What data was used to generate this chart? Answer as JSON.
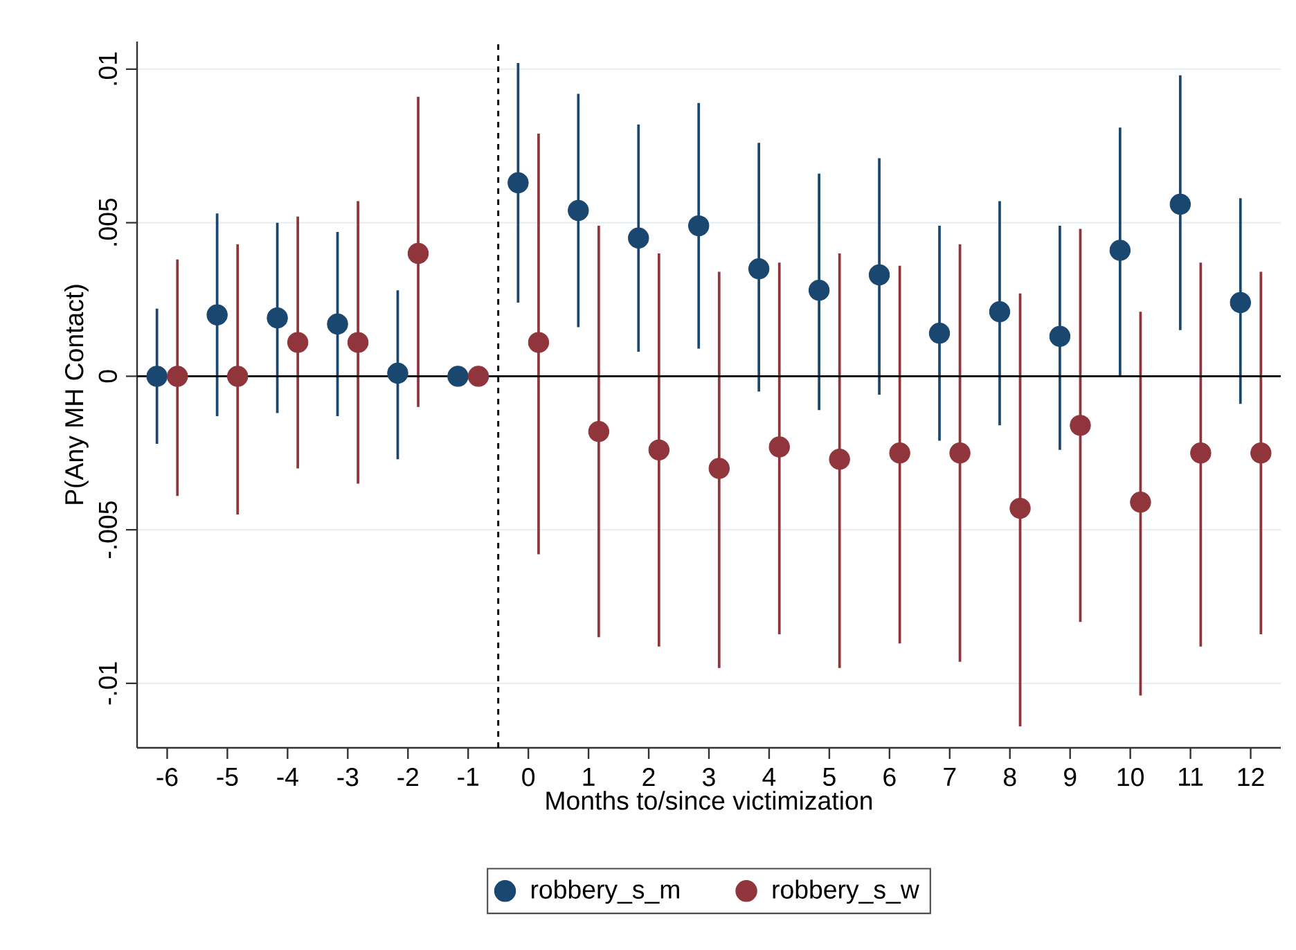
{
  "chart_data": {
    "type": "scatter",
    "xlabel": "Months to/since victimization",
    "ylabel": "P(Any MH Contact)",
    "xlim": [
      -6.5,
      12.5
    ],
    "ylim": [
      -0.0121,
      0.0109
    ],
    "xticks": [
      -6,
      -5,
      -4,
      -3,
      -2,
      -1,
      0,
      1,
      2,
      3,
      4,
      5,
      6,
      7,
      8,
      9,
      10,
      11,
      12
    ],
    "yticks": [
      {
        "value": -0.01,
        "label": "-.01"
      },
      {
        "value": -0.005,
        "label": "-.005"
      },
      0,
      {
        "value": 0.005,
        "label": ".005"
      },
      {
        "value": 0.01,
        "label": ".01"
      }
    ],
    "grid": "y",
    "legend": "bottom",
    "marker": "circle",
    "ref_lines": [
      {
        "axis": "y",
        "value": 0,
        "color": "#000000",
        "line_style": "solid"
      },
      {
        "axis": "x",
        "value": -0.5,
        "color": "#000000",
        "line_style": "dashed"
      }
    ],
    "series": [
      {
        "name": "robbery_s_m",
        "color": "#1a476f",
        "x": [
          -6.17,
          -5.17,
          -4.17,
          -3.17,
          -2.17,
          -1.17,
          -0.17,
          0.83,
          1.83,
          2.83,
          3.83,
          4.83,
          5.83,
          6.83,
          7.83,
          8.83,
          9.83,
          10.83,
          11.83
        ],
        "values": [
          0.0,
          0.002,
          0.0019,
          0.0017,
          0.0001,
          0.0,
          0.0063,
          0.0054,
          0.0045,
          0.0049,
          0.0035,
          0.0028,
          0.0033,
          0.0014,
          0.0021,
          0.0013,
          0.0041,
          0.0056,
          0.0024
        ],
        "errors": [
          [
            -0.0022,
            0.0022
          ],
          [
            -0.0013,
            0.0053
          ],
          [
            -0.0012,
            0.005
          ],
          [
            -0.0013,
            0.0047
          ],
          [
            -0.0027,
            0.0028
          ],
          null,
          [
            0.0024,
            0.0102
          ],
          [
            0.0016,
            0.0092
          ],
          [
            0.0008,
            0.0082
          ],
          [
            0.0009,
            0.0089
          ],
          [
            -0.0005,
            0.0076
          ],
          [
            -0.0011,
            0.0066
          ],
          [
            -0.0006,
            0.0071
          ],
          [
            -0.0021,
            0.0049
          ],
          [
            -0.0016,
            0.0057
          ],
          [
            -0.0024,
            0.0049
          ],
          [
            0.0,
            0.0081
          ],
          [
            0.0015,
            0.0098
          ],
          [
            -0.0009,
            0.0058
          ]
        ]
      },
      {
        "name": "robbery_s_w",
        "color": "#90353b",
        "x": [
          -5.83,
          -4.83,
          -3.83,
          -2.83,
          -1.83,
          -0.83,
          0.17,
          1.17,
          2.17,
          3.17,
          4.17,
          5.17,
          6.17,
          7.17,
          8.17,
          9.17,
          10.17,
          11.17,
          12.17
        ],
        "values": [
          0.0,
          0.0,
          0.0011,
          0.0011,
          0.004,
          0.0,
          0.0011,
          -0.0018,
          -0.0024,
          -0.003,
          -0.0023,
          -0.0027,
          -0.0025,
          -0.0025,
          -0.0043,
          -0.0016,
          -0.0041,
          -0.0025,
          -0.0025
        ],
        "errors": [
          [
            -0.0039,
            0.0038
          ],
          [
            -0.0045,
            0.0043
          ],
          [
            -0.003,
            0.0052
          ],
          [
            -0.0035,
            0.0057
          ],
          [
            -0.001,
            0.0091
          ],
          null,
          [
            -0.0058,
            0.0079
          ],
          [
            -0.0085,
            0.0049
          ],
          [
            -0.0088,
            0.004
          ],
          [
            -0.0095,
            0.0034
          ],
          [
            -0.0084,
            0.0037
          ],
          [
            -0.0095,
            0.004
          ],
          [
            -0.0087,
            0.0036
          ],
          [
            -0.0093,
            0.0043
          ],
          [
            -0.0114,
            0.0027
          ],
          [
            -0.008,
            0.0048
          ],
          [
            -0.0104,
            0.0021
          ],
          [
            -0.0088,
            0.0037
          ],
          [
            -0.0084,
            0.0034
          ]
        ]
      }
    ]
  }
}
